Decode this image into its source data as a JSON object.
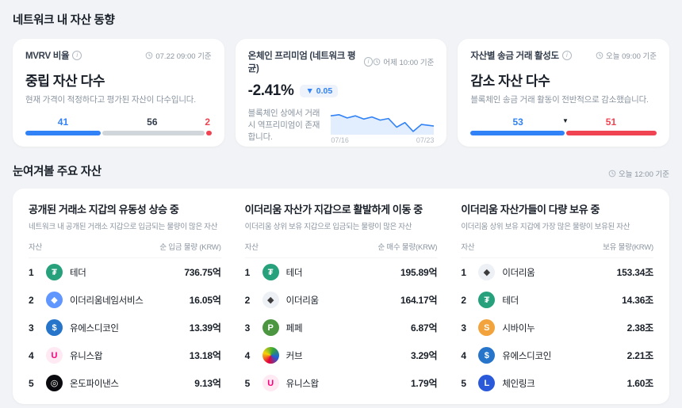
{
  "theme": {
    "blue": "#3182f6",
    "red": "#f04452",
    "gray_bar": "#d1d6db",
    "text": "#191f28",
    "muted": "#8b95a1"
  },
  "sections": {
    "network_trends": {
      "title": "네트워크 내 자산 동향"
    },
    "key_assets": {
      "title": "눈여겨볼 주요 자산",
      "timestamp": "오늘 12:00 기준"
    }
  },
  "trend_cards": [
    {
      "label": "MVRV 비율",
      "timestamp": "07.22 09:00 기준",
      "headline": "중립 자산 다수",
      "description": "현재 가격이 적정하다고 평가된 자산이 다수입니다.",
      "segments": [
        {
          "value": 41,
          "color": "#3182f6",
          "label_color": "#3182f6"
        },
        {
          "value": 56,
          "color": "#d1d6db",
          "label_color": "#333d4b"
        },
        {
          "value": 2,
          "color": "#f04452",
          "label_color": "#f04452"
        }
      ]
    },
    {
      "label": "온체인 프리미엄 (네트워크 평균)",
      "timestamp": "어제 10:00 기준",
      "value": "-2.41%",
      "badge": "▼ 0.05",
      "description": "블록체인 상에서 거래 시 역프리미엄이 존재합니다.",
      "sparkline": {
        "points": [
          [
            0,
            0.3
          ],
          [
            0.08,
            0.26
          ],
          [
            0.16,
            0.38
          ],
          [
            0.24,
            0.3
          ],
          [
            0.32,
            0.42
          ],
          [
            0.4,
            0.34
          ],
          [
            0.48,
            0.46
          ],
          [
            0.56,
            0.4
          ],
          [
            0.64,
            0.72
          ],
          [
            0.72,
            0.55
          ],
          [
            0.8,
            0.88
          ],
          [
            0.88,
            0.62
          ],
          [
            1,
            0.68
          ]
        ],
        "start_label": "07/16",
        "end_label": "07/23"
      }
    },
    {
      "label": "자산별 송금 거래 활성도",
      "timestamp": "오늘 09:00 기준",
      "headline": "감소 자산 다수",
      "description": "블록체인 송금 거래 활동이 전반적으로 감소했습니다.",
      "marker": true,
      "segments": [
        {
          "value": 53,
          "color": "#3182f6",
          "label_color": "#3182f6"
        },
        {
          "value": 51,
          "color": "#f04452",
          "label_color": "#f04452"
        }
      ]
    }
  ],
  "asset_groups": [
    {
      "title": "공개된 거래소 지갑의 유동성 상승 중",
      "subtitle": "네트워크 내 공개된 거래소 지갑으로 입금되는 물량이 많은 자산",
      "col_asset": "자산",
      "col_amount": "순 입금 물량 (KRW)",
      "rows": [
        {
          "rank": 1,
          "name": "테더",
          "amount": "736.75억",
          "icon": {
            "name": "tether-icon",
            "bg": "#26a17b",
            "fg": "#ffffff",
            "glyph": "₮"
          }
        },
        {
          "rank": 2,
          "name": "이더리움네임서비스",
          "amount": "16.05억",
          "icon": {
            "name": "ens-icon",
            "bg": "#5f96ff",
            "fg": "#ffffff",
            "glyph": "◆"
          }
        },
        {
          "rank": 3,
          "name": "유에스디코인",
          "amount": "13.39억",
          "icon": {
            "name": "usdc-icon",
            "bg": "#2775ca",
            "fg": "#ffffff",
            "glyph": "$"
          }
        },
        {
          "rank": 4,
          "name": "유니스왑",
          "amount": "13.18억",
          "icon": {
            "name": "uniswap-icon",
            "bg": "#ffe9f3",
            "fg": "#ff007a",
            "glyph": "U"
          }
        },
        {
          "rank": 5,
          "name": "온도파이낸스",
          "amount": "9.13억",
          "icon": {
            "name": "ondo-finance-icon",
            "bg": "#0b0b0f",
            "fg": "#ffffff",
            "glyph": "◎"
          }
        }
      ]
    },
    {
      "title": "이더리움 자산가 지갑으로 활발하게 이동 중",
      "subtitle": "이더리움 상위 보유 지갑으로 입금되는 물량이 많은 자산",
      "col_asset": "자산",
      "col_amount": "순 매수 물량(KRW)",
      "rows": [
        {
          "rank": 1,
          "name": "테더",
          "amount": "195.89억",
          "icon": {
            "name": "tether-icon",
            "bg": "#26a17b",
            "fg": "#ffffff",
            "glyph": "₮"
          }
        },
        {
          "rank": 2,
          "name": "이더리움",
          "amount": "164.17억",
          "icon": {
            "name": "ethereum-icon",
            "bg": "#edf0f4",
            "fg": "#3c3c3d",
            "glyph": "◆"
          }
        },
        {
          "rank": 3,
          "name": "페페",
          "amount": "6.87억",
          "icon": {
            "name": "pepe-icon",
            "bg": "#4c9641",
            "fg": "#ffffff",
            "glyph": "P"
          }
        },
        {
          "rank": 4,
          "name": "커브",
          "amount": "3.29억",
          "icon": {
            "name": "curve-icon",
            "bg": "conic-gradient(from 200deg, #e6003a, #f7d308, #35a835, #1f5fd8, #e6003a)",
            "fg": "#ffffff",
            "glyph": ""
          }
        },
        {
          "rank": 5,
          "name": "유니스왑",
          "amount": "1.79억",
          "icon": {
            "name": "uniswap-icon",
            "bg": "#ffe9f3",
            "fg": "#ff007a",
            "glyph": "U"
          }
        }
      ]
    },
    {
      "title": "이더리움 자산가들이 다량 보유 중",
      "subtitle": "이더리움 상위 보유 지갑에 가장 많은 물량이 보유된 자산",
      "col_asset": "자산",
      "col_amount": "보유 물량(KRW)",
      "rows": [
        {
          "rank": 1,
          "name": "이더리움",
          "amount": "153.34조",
          "icon": {
            "name": "ethereum-icon",
            "bg": "#edf0f4",
            "fg": "#3c3c3d",
            "glyph": "◆"
          }
        },
        {
          "rank": 2,
          "name": "테더",
          "amount": "14.36조",
          "icon": {
            "name": "tether-icon",
            "bg": "#26a17b",
            "fg": "#ffffff",
            "glyph": "₮"
          }
        },
        {
          "rank": 3,
          "name": "시바이누",
          "amount": "2.38조",
          "icon": {
            "name": "shiba-inu-icon",
            "bg": "#f2a33c",
            "fg": "#ffffff",
            "glyph": "S"
          }
        },
        {
          "rank": 4,
          "name": "유에스디코인",
          "amount": "2.21조",
          "icon": {
            "name": "usdc-icon",
            "bg": "#2775ca",
            "fg": "#ffffff",
            "glyph": "$"
          }
        },
        {
          "rank": 5,
          "name": "체인링크",
          "amount": "1.60조",
          "icon": {
            "name": "chainlink-icon",
            "bg": "#2a5ada",
            "fg": "#ffffff",
            "glyph": "L"
          }
        }
      ]
    }
  ]
}
